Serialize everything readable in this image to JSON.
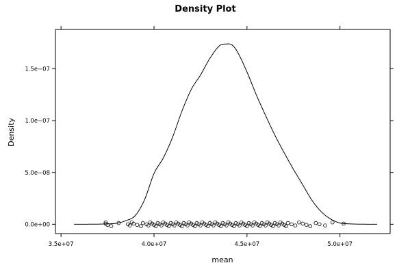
{
  "chart_data": {
    "type": "line",
    "title": "Density Plot",
    "xlabel": "mean",
    "ylabel": "Density",
    "xlim": [
      34700000,
      52700000
    ],
    "ylim": [
      -9e-09,
      1.88e-07
    ],
    "x_ticks": [
      35000000,
      40000000,
      45000000,
      50000000
    ],
    "x_tick_labels": [
      "3.5e+07",
      "4.0e+07",
      "4.5e+07",
      "5.0e+07"
    ],
    "y_ticks": [
      0,
      5e-08,
      1e-07,
      1.5e-07
    ],
    "y_tick_labels": [
      "0.0e+00",
      "5.0e−08",
      "1.0e−07",
      "1.5e−07"
    ],
    "grid": false,
    "series": [
      {
        "x": [
          35700000,
          36500000,
          37000000,
          37500000,
          38000000,
          38500000,
          39000000,
          39500000,
          40000000,
          40500000,
          41000000,
          41500000,
          42000000,
          42500000,
          43000000,
          43500000,
          43900000,
          44200000,
          44500000,
          45000000,
          45500000,
          46000000,
          46500000,
          47000000,
          47500000,
          48000000,
          48500000,
          49000000,
          49500000,
          50000000,
          50500000,
          51000000,
          51500000,
          52000000
        ],
        "y": [
          0.0,
          3e-11,
          1.2e-10,
          4e-10,
          1e-09,
          3.5e-09,
          8.5e-09,
          2.4e-08,
          4.9e-08,
          6.4e-08,
          8.4e-08,
          1.09e-07,
          1.3e-07,
          1.44e-07,
          1.6e-07,
          1.72e-07,
          1.74e-07,
          1.73e-07,
          1.66e-07,
          1.47e-07,
          1.25e-07,
          1.05e-07,
          8.6e-08,
          6.9e-08,
          5.3e-08,
          3.8e-08,
          2.3e-08,
          1.2e-08,
          5e-09,
          1.2e-09,
          4e-10,
          1.2e-10,
          2e-11,
          0.0
        ]
      }
    ],
    "rug": [
      37400000,
      37400000,
      37500000,
      37700000,
      38100000,
      38600000,
      38700000,
      38800000,
      38900000,
      39100000,
      39300000,
      39400000,
      39600000,
      39700000,
      39800000,
      39900000,
      40000000,
      40100000,
      40200000,
      40300000,
      40400000,
      40500000,
      40600000,
      40700000,
      40800000,
      40900000,
      41000000,
      41100000,
      41200000,
      41300000,
      41400000,
      41500000,
      41600000,
      41700000,
      41800000,
      41900000,
      42000000,
      42100000,
      42200000,
      42300000,
      42400000,
      42500000,
      42600000,
      42700000,
      42800000,
      42900000,
      43000000,
      43100000,
      43200000,
      43300000,
      43400000,
      43500000,
      43600000,
      43700000,
      43800000,
      43900000,
      44000000,
      44100000,
      44200000,
      44300000,
      44400000,
      44500000,
      44600000,
      44700000,
      44800000,
      44900000,
      45000000,
      45100000,
      45200000,
      45300000,
      45400000,
      45500000,
      45600000,
      45700000,
      45800000,
      45900000,
      46000000,
      46100000,
      46200000,
      46300000,
      46400000,
      46500000,
      46600000,
      46700000,
      46800000,
      46900000,
      47000000,
      47100000,
      47200000,
      47400000,
      47600000,
      47800000,
      48000000,
      48200000,
      48400000,
      48700000,
      48900000,
      49200000,
      49600000,
      50200000
    ]
  }
}
